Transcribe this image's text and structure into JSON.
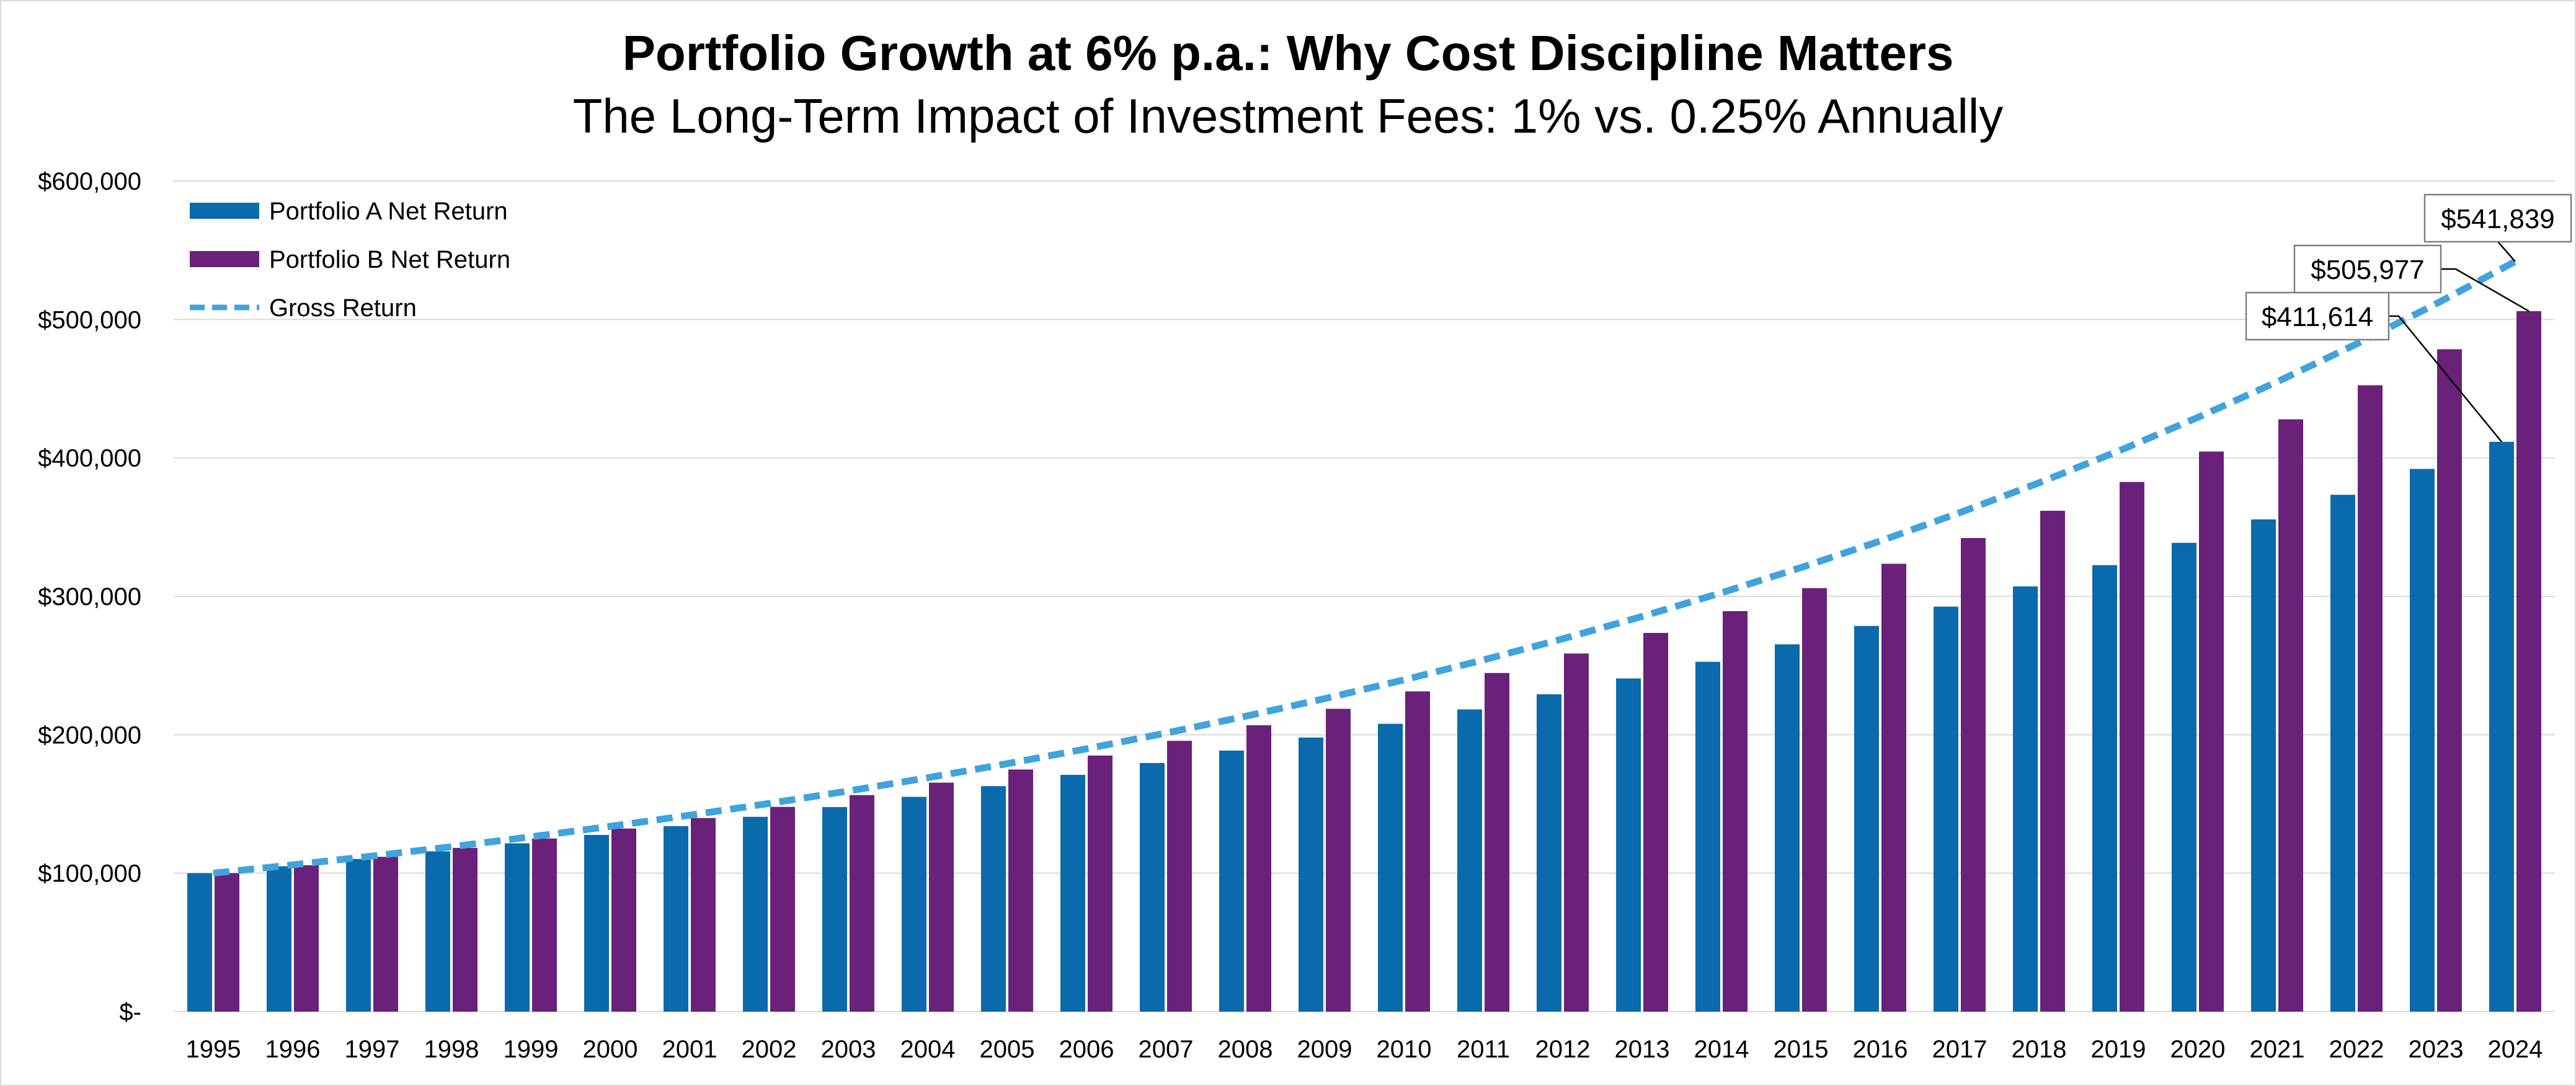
{
  "chart_data": {
    "type": "bar",
    "title": "Portfolio Growth at 6% p.a.: Why Cost Discipline Matters",
    "subtitle": "The Long-Term Impact of Investment Fees: 1% vs. 0.25% Annually",
    "xlabel": "",
    "ylabel": "",
    "ylim": [
      0,
      600000
    ],
    "grid": true,
    "legend_position": "top-left",
    "categories": [
      "1995",
      "1996",
      "1997",
      "1998",
      "1999",
      "2000",
      "2001",
      "2002",
      "2003",
      "2004",
      "2005",
      "2006",
      "2007",
      "2008",
      "2009",
      "2010",
      "2011",
      "2012",
      "2013",
      "2014",
      "2015",
      "2016",
      "2017",
      "2018",
      "2019",
      "2020",
      "2021",
      "2022",
      "2023",
      "2024"
    ],
    "y_ticks": [
      {
        "value": 0,
        "label": "$-"
      },
      {
        "value": 100000,
        "label": "$100,000"
      },
      {
        "value": 200000,
        "label": "$200,000"
      },
      {
        "value": 300000,
        "label": "$300,000"
      },
      {
        "value": 400000,
        "label": "$400,000"
      },
      {
        "value": 500000,
        "label": "$500,000"
      },
      {
        "value": 600000,
        "label": "$600,000"
      }
    ],
    "series": [
      {
        "name": "Portfolio A Net Return",
        "kind": "bar",
        "color": "#0a6aac",
        "values": [
          100000,
          105000,
          110250,
          115763,
          121551,
          127628,
          134010,
          140710,
          147746,
          155133,
          162889,
          171034,
          179586,
          188565,
          197993,
          207893,
          218287,
          229202,
          240662,
          252695,
          265330,
          278596,
          292526,
          307152,
          322510,
          338635,
          355567,
          373345,
          392013,
          411614
        ]
      },
      {
        "name": "Portfolio B Net Return",
        "kind": "bar",
        "color": "#6a217a",
        "values": [
          100000,
          105750,
          111831,
          118261,
          125061,
          132252,
          139856,
          147898,
          156402,
          165395,
          174905,
          184962,
          195597,
          206844,
          218738,
          231315,
          244616,
          258681,
          273555,
          289285,
          305918,
          323509,
          342110,
          361781,
          382584,
          404582,
          427845,
          452446,
          478462,
          505977
        ]
      },
      {
        "name": "Gross Return",
        "kind": "line",
        "style": "dashed",
        "color": "#3fa3dc",
        "values": [
          100000,
          106000,
          112360,
          119102,
          126248,
          133823,
          141852,
          150363,
          159385,
          168948,
          179085,
          189830,
          201220,
          213293,
          226090,
          239656,
          254035,
          269277,
          285434,
          302560,
          320714,
          339956,
          360354,
          381975,
          404893,
          429187,
          454938,
          482235,
          511169,
          541839
        ]
      }
    ],
    "annotations": [
      {
        "label": "$411,614",
        "series": "Portfolio A Net Return",
        "category": "2024"
      },
      {
        "label": "$505,977",
        "series": "Portfolio B Net Return",
        "category": "2024"
      },
      {
        "label": "$541,839",
        "series": "Gross Return",
        "category": "2024"
      }
    ]
  }
}
